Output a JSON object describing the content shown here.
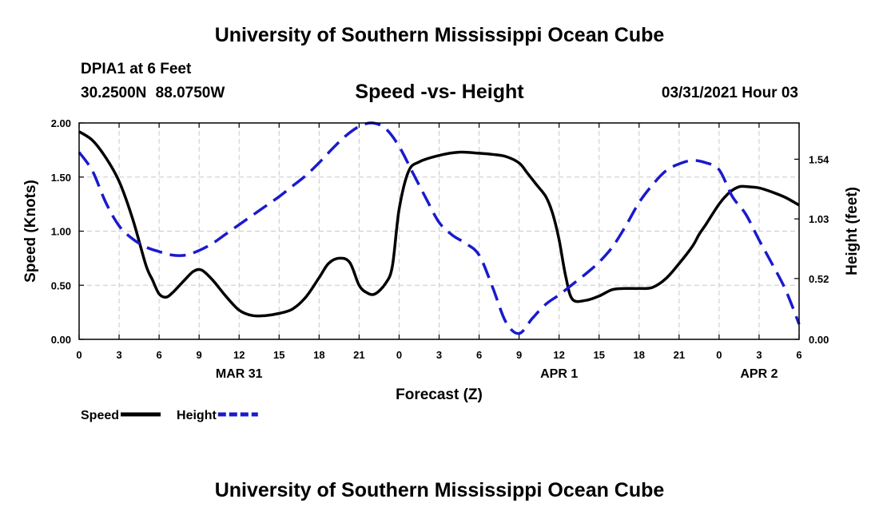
{
  "header": {
    "title": "University of Southern Mississippi Ocean Cube",
    "station": "DPIA1 at 6 Feet",
    "coords": "30.2500N 88.0750W",
    "subtitle": "Speed -vs- Height",
    "datetime": "03/31/2021 Hour 03"
  },
  "footer": {
    "title": "University of Southern Mississippi Ocean Cube"
  },
  "chart_data": {
    "type": "line",
    "title": "Speed -vs- Height",
    "xlabel": "Forecast (Z)",
    "ylabel": "Speed (Knots)",
    "y2label": "Height (feet)",
    "xlim": [
      0,
      54
    ],
    "ylim": [
      0,
      2.0
    ],
    "y2lim": [
      0,
      1.85
    ],
    "grid": true,
    "x_ticks": [
      0,
      3,
      6,
      9,
      12,
      15,
      18,
      21,
      24,
      27,
      30,
      33,
      36,
      39,
      42,
      45,
      48,
      51,
      54
    ],
    "x_tick_labels": [
      "0",
      "3",
      "6",
      "9",
      "12",
      "15",
      "18",
      "21",
      "0",
      "3",
      "6",
      "9",
      "12",
      "15",
      "18",
      "21",
      "0",
      "3",
      "6"
    ],
    "y_ticks": [
      0,
      0.5,
      1.0,
      1.5,
      2.0
    ],
    "y_tick_labels": [
      "0.00",
      "0.50",
      "1.00",
      "1.50",
      "2.00"
    ],
    "y2_ticks": [
      0,
      0.52,
      1.03,
      1.54
    ],
    "y2_tick_labels": [
      "0.00",
      "0.52",
      "1.03",
      "1.54"
    ],
    "date_labels": [
      {
        "x": 12,
        "label": "MAR 31"
      },
      {
        "x": 36,
        "label": "APR 1"
      },
      {
        "x": 51,
        "label": "APR 2"
      }
    ],
    "legend_position": "bottom-left",
    "series": [
      {
        "name": "Speed",
        "axis": "left",
        "color": "#000000",
        "style": "solid",
        "x": [
          0,
          1,
          2,
          3,
          4,
          5,
          5.5,
          6,
          6.5,
          7,
          8,
          8.6,
          9.2,
          10,
          11,
          12,
          13,
          14,
          15,
          16,
          17,
          18,
          18.7,
          19.5,
          20.3,
          21,
          21.6,
          22.2,
          23,
          23.5,
          24,
          24.7,
          25.5,
          27,
          28.5,
          30,
          31,
          32,
          33,
          33.6,
          34.3,
          35,
          35.5,
          36,
          36.5,
          37,
          38,
          39,
          40,
          41,
          42,
          43,
          44,
          45,
          46,
          46.5,
          47,
          48,
          48.8,
          49.5,
          50.2,
          51,
          52,
          53,
          54
        ],
        "values": [
          1.92,
          1.84,
          1.68,
          1.46,
          1.12,
          0.69,
          0.55,
          0.42,
          0.39,
          0.43,
          0.56,
          0.63,
          0.64,
          0.55,
          0.4,
          0.27,
          0.22,
          0.22,
          0.24,
          0.28,
          0.39,
          0.57,
          0.7,
          0.75,
          0.71,
          0.5,
          0.43,
          0.42,
          0.52,
          0.68,
          1.2,
          1.55,
          1.64,
          1.7,
          1.73,
          1.72,
          1.71,
          1.69,
          1.63,
          1.54,
          1.43,
          1.32,
          1.17,
          0.92,
          0.58,
          0.37,
          0.36,
          0.4,
          0.46,
          0.47,
          0.47,
          0.48,
          0.56,
          0.7,
          0.86,
          0.97,
          1.06,
          1.25,
          1.36,
          1.41,
          1.41,
          1.4,
          1.36,
          1.31,
          1.24
        ]
      },
      {
        "name": "Height",
        "axis": "right",
        "color": "#1a1acc",
        "style": "dashed",
        "x": [
          0,
          1,
          2,
          3,
          4,
          5,
          6,
          7,
          8,
          9,
          10,
          11,
          12,
          13,
          14,
          15,
          16,
          17,
          18,
          19,
          20,
          21,
          22,
          23,
          24,
          25,
          26,
          27,
          28,
          29,
          30,
          31,
          32,
          33,
          34,
          35,
          36,
          37,
          38,
          39,
          40,
          41,
          42,
          43,
          44,
          45,
          46,
          47,
          48,
          49,
          50,
          51,
          52,
          53,
          54
        ],
        "values": [
          1.6,
          1.44,
          1.17,
          0.97,
          0.86,
          0.79,
          0.75,
          0.72,
          0.72,
          0.76,
          0.82,
          0.9,
          0.98,
          1.06,
          1.14,
          1.22,
          1.31,
          1.4,
          1.51,
          1.63,
          1.74,
          1.82,
          1.85,
          1.8,
          1.65,
          1.43,
          1.21,
          1.0,
          0.89,
          0.82,
          0.72,
          0.45,
          0.15,
          0.05,
          0.18,
          0.3,
          0.38,
          0.47,
          0.56,
          0.66,
          0.79,
          0.97,
          1.17,
          1.32,
          1.44,
          1.5,
          1.53,
          1.51,
          1.45,
          1.22,
          1.07,
          0.85,
          0.64,
          0.42,
          0.13
        ]
      }
    ]
  }
}
